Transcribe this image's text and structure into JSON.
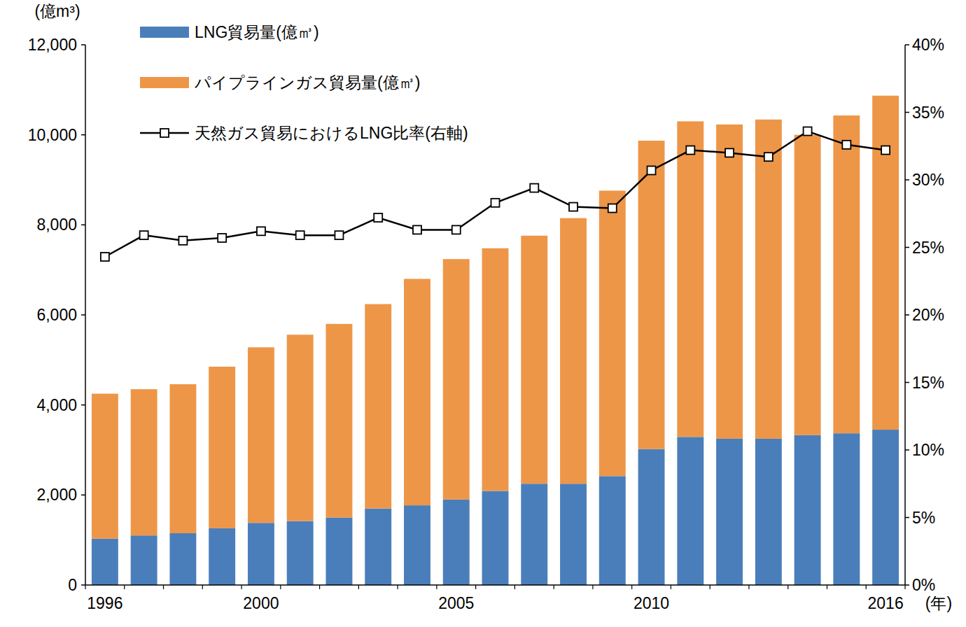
{
  "chart_data": {
    "type": "bar",
    "stacked": true,
    "legend": "top-left",
    "x_label": "(年)",
    "y_label": "(億m³)",
    "categories": [
      "1996",
      null,
      null,
      null,
      "2000",
      null,
      null,
      null,
      null,
      "2005",
      null,
      null,
      null,
      null,
      "2010",
      null,
      null,
      null,
      null,
      null,
      "2016"
    ],
    "series": [
      {
        "name": "LNG貿易量(億㎥)",
        "type": "bar",
        "color": "#4a7ebb",
        "values": [
          1030,
          1100,
          1150,
          1260,
          1380,
          1420,
          1500,
          1700,
          1770,
          1900,
          2090,
          2250,
          2250,
          2420,
          3020,
          3290,
          3250,
          3250,
          3330,
          3370,
          3450
        ]
      },
      {
        "name": "パイプラインガス貿易量(億㎥)",
        "type": "bar",
        "color": "#ee9648",
        "values": [
          3220,
          3250,
          3310,
          3590,
          3900,
          4140,
          4300,
          4540,
          5030,
          5340,
          5390,
          5510,
          5900,
          6340,
          6850,
          7010,
          6980,
          7090,
          6670,
          7060,
          7420
        ]
      },
      {
        "name": "天然ガス貿易におけるLNG比率(右軸)",
        "type": "line",
        "axis": "y2",
        "color": "#000000",
        "marker": "square",
        "line_style": "solid",
        "values": [
          24.3,
          25.9,
          25.5,
          25.7,
          26.2,
          25.9,
          25.9,
          27.2,
          26.3,
          26.3,
          28.3,
          29.4,
          28.0,
          27.9,
          30.7,
          32.2,
          32.0,
          31.7,
          33.6,
          32.6,
          32.2
        ]
      }
    ],
    "ylim": [
      0,
      12000
    ],
    "yticks": [
      0,
      {
        "value": 2000,
        "label": "2,000"
      },
      {
        "value": 4000,
        "label": "4,000"
      },
      {
        "value": 6000,
        "label": "6,000"
      },
      {
        "value": 8000,
        "label": "8,000"
      },
      {
        "value": 10000,
        "label": "10,000"
      },
      {
        "value": 12000,
        "label": "12,000"
      }
    ],
    "y2lim": [
      0,
      40
    ],
    "y2ticks": [
      {
        "value": 0,
        "label": "0%"
      },
      {
        "value": 5,
        "label": "5%"
      },
      {
        "value": 10,
        "label": "10%"
      },
      {
        "value": 15,
        "label": "15%"
      },
      {
        "value": 20,
        "label": "20%"
      },
      {
        "value": 25,
        "label": "25%"
      },
      {
        "value": 30,
        "label": "30%"
      },
      {
        "value": 35,
        "label": "35%"
      },
      {
        "value": 40,
        "label": "40%"
      }
    ],
    "grid": false
  }
}
